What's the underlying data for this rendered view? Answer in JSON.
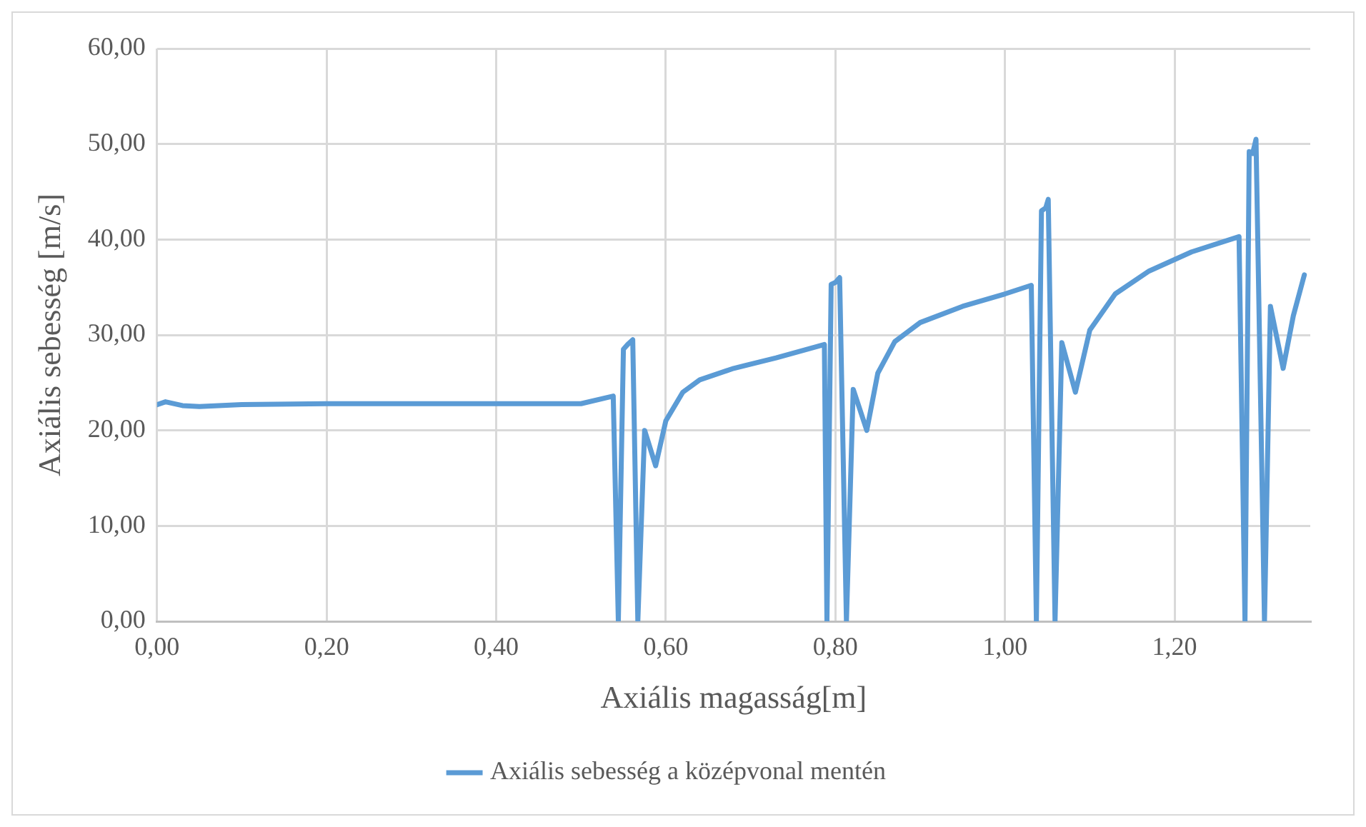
{
  "chart_data": {
    "type": "line",
    "xlabel": "Axiális magasság[m]",
    "ylabel": "Axiális sebesség [m/s]",
    "xlim": [
      0,
      1.36
    ],
    "ylim": [
      0,
      60
    ],
    "xticks": [
      {
        "value": 0,
        "label": "0,00"
      },
      {
        "value": 0.2,
        "label": "0,20"
      },
      {
        "value": 0.4,
        "label": "0,40"
      },
      {
        "value": 0.6,
        "label": "0,60"
      },
      {
        "value": 0.8,
        "label": "0,80"
      },
      {
        "value": 1.0,
        "label": "1,00"
      },
      {
        "value": 1.2,
        "label": "1,20"
      }
    ],
    "yticks": [
      {
        "value": 0,
        "label": "0,00"
      },
      {
        "value": 10,
        "label": "10,00"
      },
      {
        "value": 20,
        "label": "20,00"
      },
      {
        "value": 30,
        "label": "30,00"
      },
      {
        "value": 40,
        "label": "40,00"
      },
      {
        "value": 50,
        "label": "50,00"
      },
      {
        "value": 60,
        "label": "60,00"
      }
    ],
    "grid": true,
    "legend": "bottom",
    "marker": "none",
    "line_style": "solid",
    "series": [
      {
        "name": "Axiális sebesség a középvonal mentén",
        "color": "#5b9bd5",
        "x": [
          0,
          0.01,
          0.03,
          0.05,
          0.1,
          0.2,
          0.3,
          0.4,
          0.5,
          0.538,
          0.544,
          0.55,
          0.555,
          0.561,
          0.567,
          0.575,
          0.588,
          0.6,
          0.62,
          0.64,
          0.68,
          0.73,
          0.787,
          0.79,
          0.795,
          0.8,
          0.805,
          0.813,
          0.821,
          0.837,
          0.85,
          0.87,
          0.9,
          0.95,
          1.0,
          1.031,
          1.037,
          1.043,
          1.048,
          1.051,
          1.059,
          1.067,
          1.083,
          1.1,
          1.13,
          1.17,
          1.22,
          1.276,
          1.283,
          1.288,
          1.292,
          1.296,
          1.306,
          1.313,
          1.328,
          1.34,
          1.353
        ],
        "values": [
          22.7,
          23.0,
          22.6,
          22.5,
          22.7,
          22.8,
          22.8,
          22.8,
          22.8,
          23.6,
          0,
          28.5,
          29.0,
          29.5,
          0,
          20.0,
          16.3,
          21.0,
          24.0,
          25.3,
          26.5,
          27.6,
          29.0,
          0,
          35.3,
          35.5,
          36.0,
          0,
          24.3,
          20.0,
          26.0,
          29.3,
          31.3,
          33.0,
          34.3,
          35.2,
          0,
          43.0,
          43.3,
          44.2,
          0,
          29.2,
          24.0,
          30.5,
          34.3,
          36.7,
          38.7,
          40.3,
          0,
          49.2,
          49.0,
          50.5,
          0,
          33.0,
          26.5,
          32.0,
          36.3
        ]
      }
    ]
  }
}
